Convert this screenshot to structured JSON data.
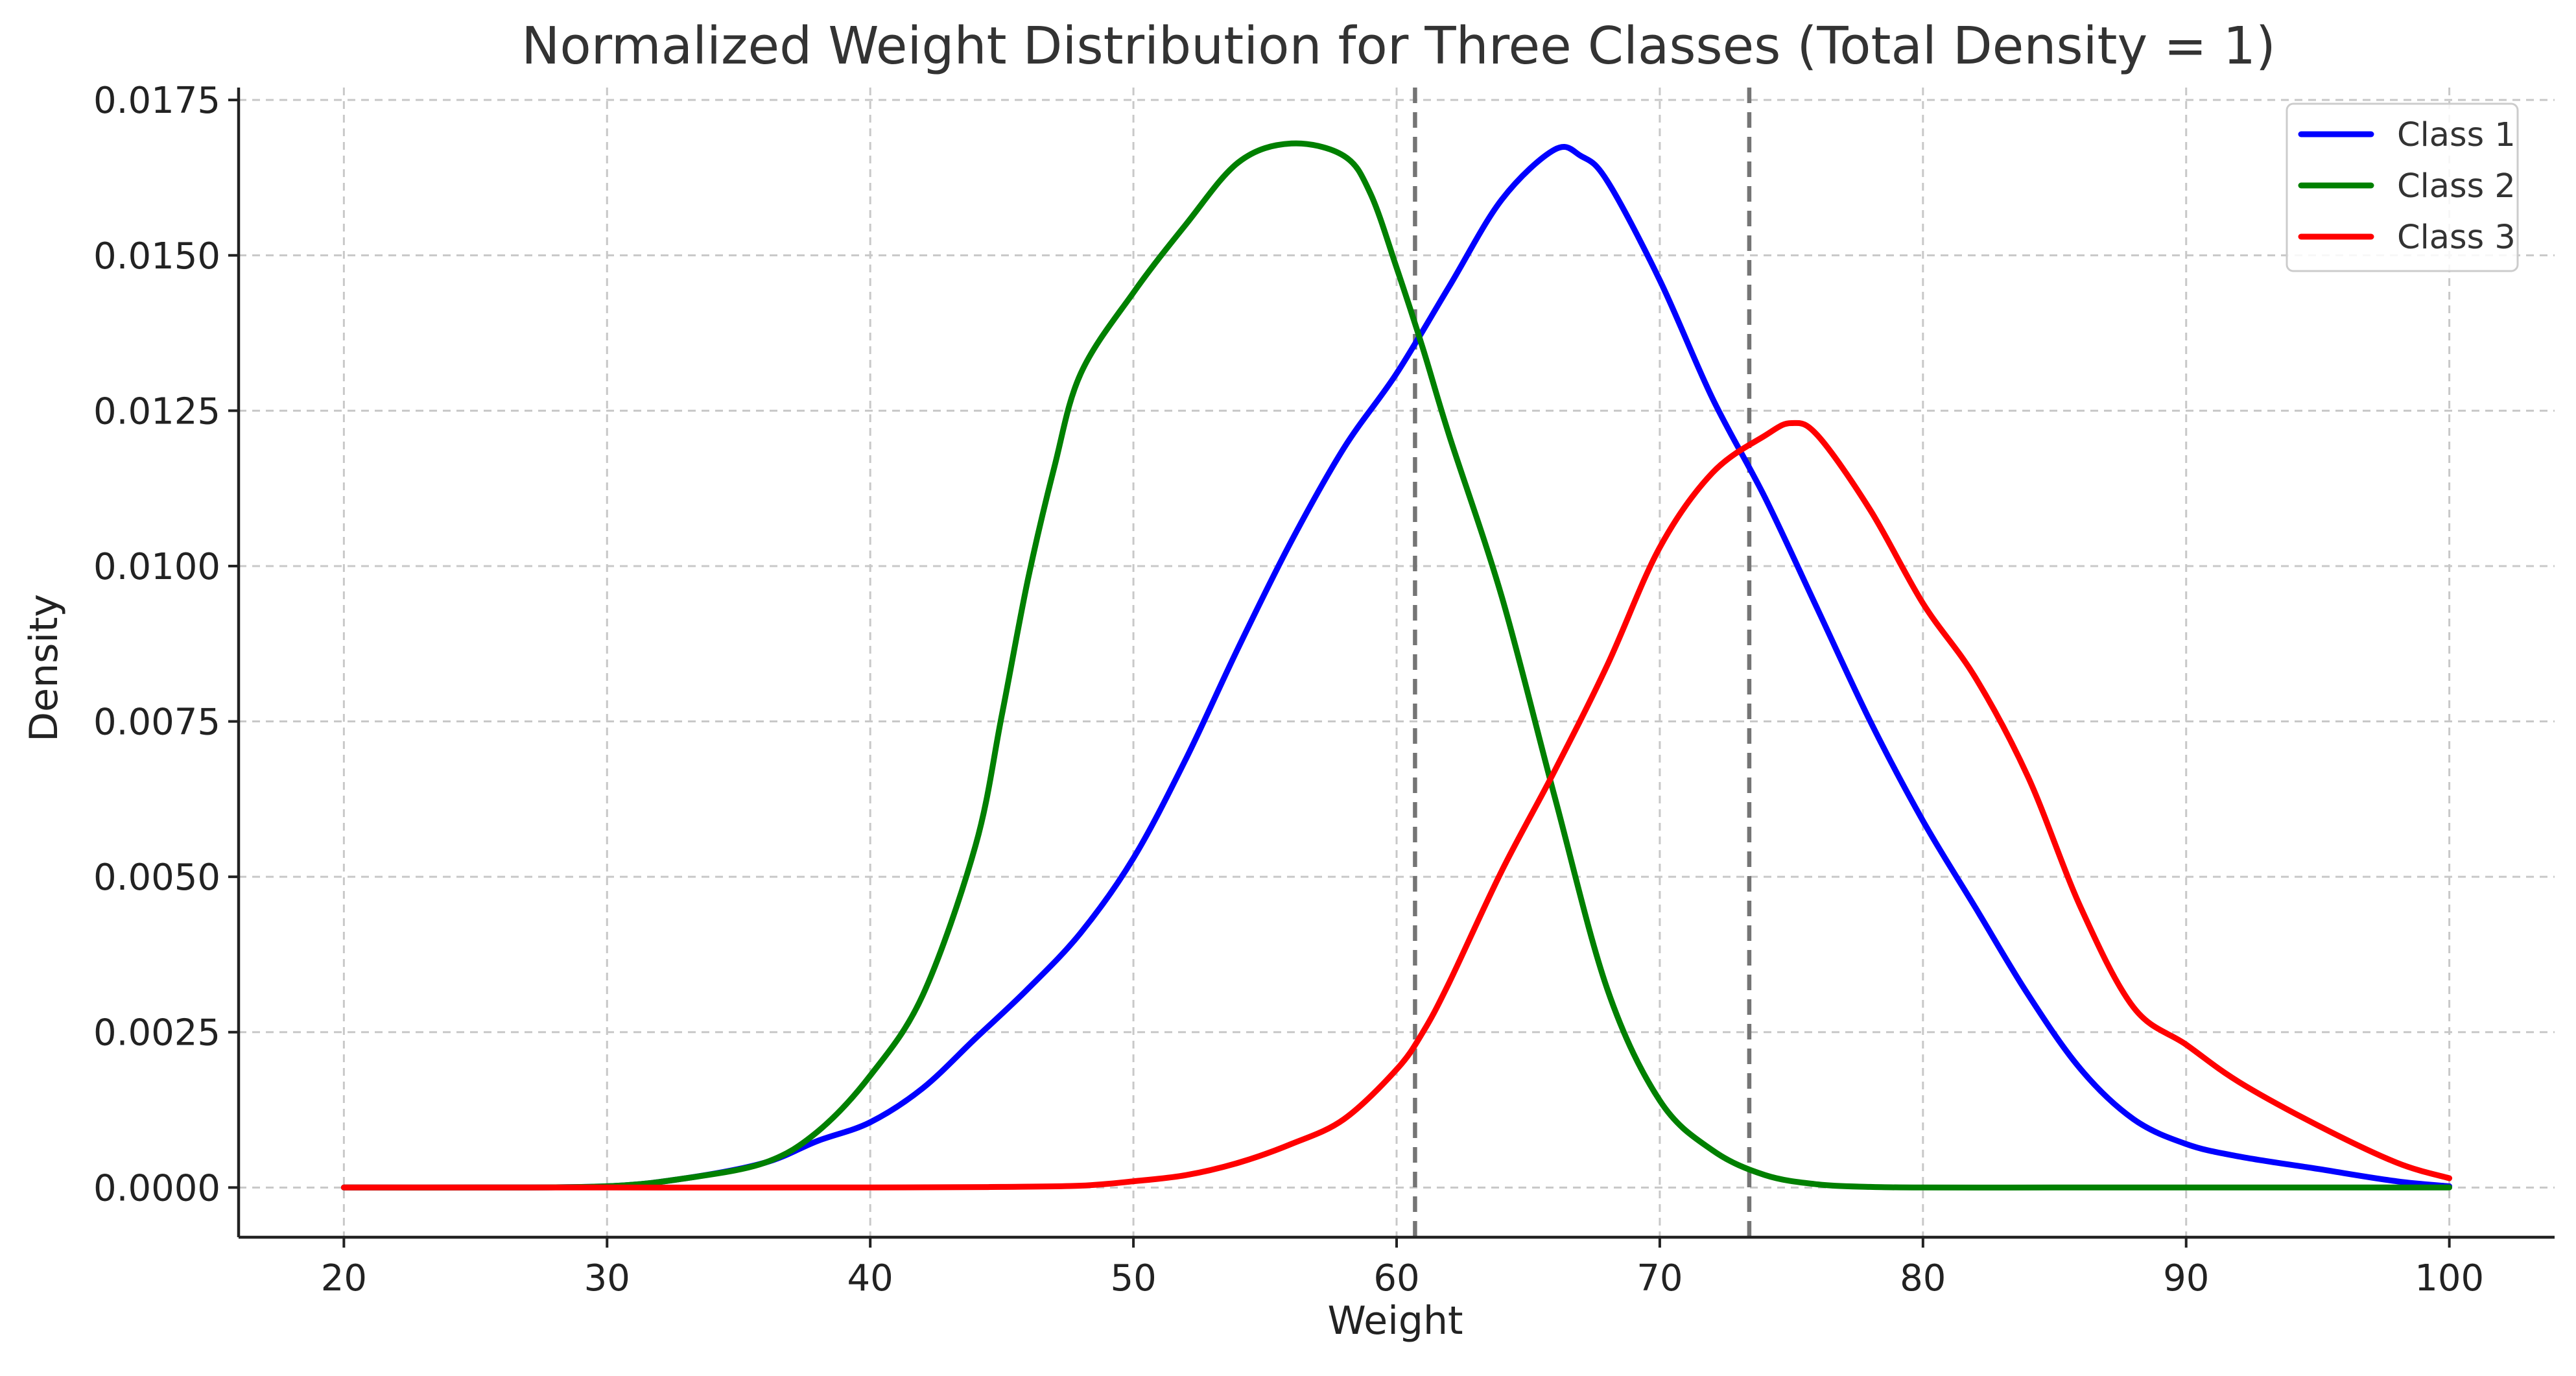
{
  "chart_data": {
    "type": "line",
    "title": "Normalized Weight Distribution for Three Classes (Total Density = 1)",
    "xlabel": "Weight",
    "ylabel": "Density",
    "xlim": [
      16,
      104
    ],
    "ylim": [
      -0.0008,
      0.0177
    ],
    "xticks": [
      20,
      30,
      40,
      50,
      60,
      70,
      80,
      90,
      100
    ],
    "xtick_labels": [
      "20",
      "30",
      "40",
      "50",
      "60",
      "70",
      "80",
      "90",
      "100"
    ],
    "yticks": [
      0,
      0.0025,
      0.005,
      0.0075,
      0.01,
      0.0125,
      0.015,
      0.0175
    ],
    "ytick_labels": [
      "0.0000",
      "0.0025",
      "0.0050",
      "0.0075",
      "0.0100",
      "0.0125",
      "0.0150",
      "0.0175"
    ],
    "grid": true,
    "legend_position": "top-right",
    "vertical_lines": [
      60.7,
      73.4
    ],
    "vertical_line_color": "#757575",
    "series": [
      {
        "name": "Class 1",
        "color": "#0000ff",
        "x": [
          20,
          25,
          30,
          33,
          36,
          38,
          40,
          42,
          44,
          46,
          48,
          50,
          52,
          54,
          56,
          58,
          60,
          62,
          64,
          66,
          67,
          68,
          70,
          72,
          74,
          76,
          78,
          80,
          82,
          84,
          86,
          88,
          90,
          92,
          95,
          98,
          100
        ],
        "y": [
          0,
          0,
          2e-05,
          0.00015,
          0.0004,
          0.00075,
          0.00105,
          0.0016,
          0.0024,
          0.0032,
          0.0041,
          0.0053,
          0.0069,
          0.0087,
          0.0104,
          0.0119,
          0.0131,
          0.0145,
          0.0159,
          0.0167,
          0.0166,
          0.0162,
          0.0146,
          0.0127,
          0.0111,
          0.0093,
          0.0075,
          0.0059,
          0.0045,
          0.0031,
          0.0019,
          0.0011,
          0.0007,
          0.0005,
          0.0003,
          0.0001,
          2e-05
        ]
      },
      {
        "name": "Class 2",
        "color": "#008000",
        "x": [
          20,
          25,
          30,
          33,
          36,
          38,
          40,
          42,
          44,
          45,
          46,
          47,
          48,
          50,
          52,
          54,
          56,
          58,
          59,
          60,
          61,
          62,
          64,
          66,
          68,
          70,
          72,
          74,
          76,
          78,
          80,
          85,
          90,
          95,
          100
        ],
        "y": [
          0,
          0,
          2e-05,
          0.00015,
          0.0004,
          0.0009,
          0.0018,
          0.0031,
          0.0055,
          0.0076,
          0.0098,
          0.0116,
          0.0131,
          0.0144,
          0.0155,
          0.0165,
          0.0168,
          0.0166,
          0.016,
          0.0148,
          0.0135,
          0.0121,
          0.0095,
          0.0063,
          0.0032,
          0.0014,
          0.0006,
          0.0002,
          5e-05,
          1e-05,
          0,
          0,
          0,
          0,
          0
        ]
      },
      {
        "name": "Class 3",
        "color": "#ff0000",
        "x": [
          20,
          30,
          40,
          45,
          48,
          50,
          52,
          54,
          56,
          58,
          60,
          61,
          62,
          64,
          66,
          68,
          70,
          72,
          74,
          75,
          76,
          78,
          80,
          82,
          84,
          86,
          88,
          90,
          92,
          95,
          98,
          100
        ],
        "y": [
          0,
          0,
          0,
          1e-05,
          3e-05,
          0.0001,
          0.0002,
          0.0004,
          0.0007,
          0.0011,
          0.0019,
          0.0025,
          0.0033,
          0.0051,
          0.0067,
          0.0084,
          0.0103,
          0.0115,
          0.0121,
          0.0123,
          0.0121,
          0.0109,
          0.0094,
          0.0082,
          0.0066,
          0.0045,
          0.0029,
          0.0023,
          0.0017,
          0.001,
          0.0004,
          0.00015
        ]
      }
    ]
  }
}
